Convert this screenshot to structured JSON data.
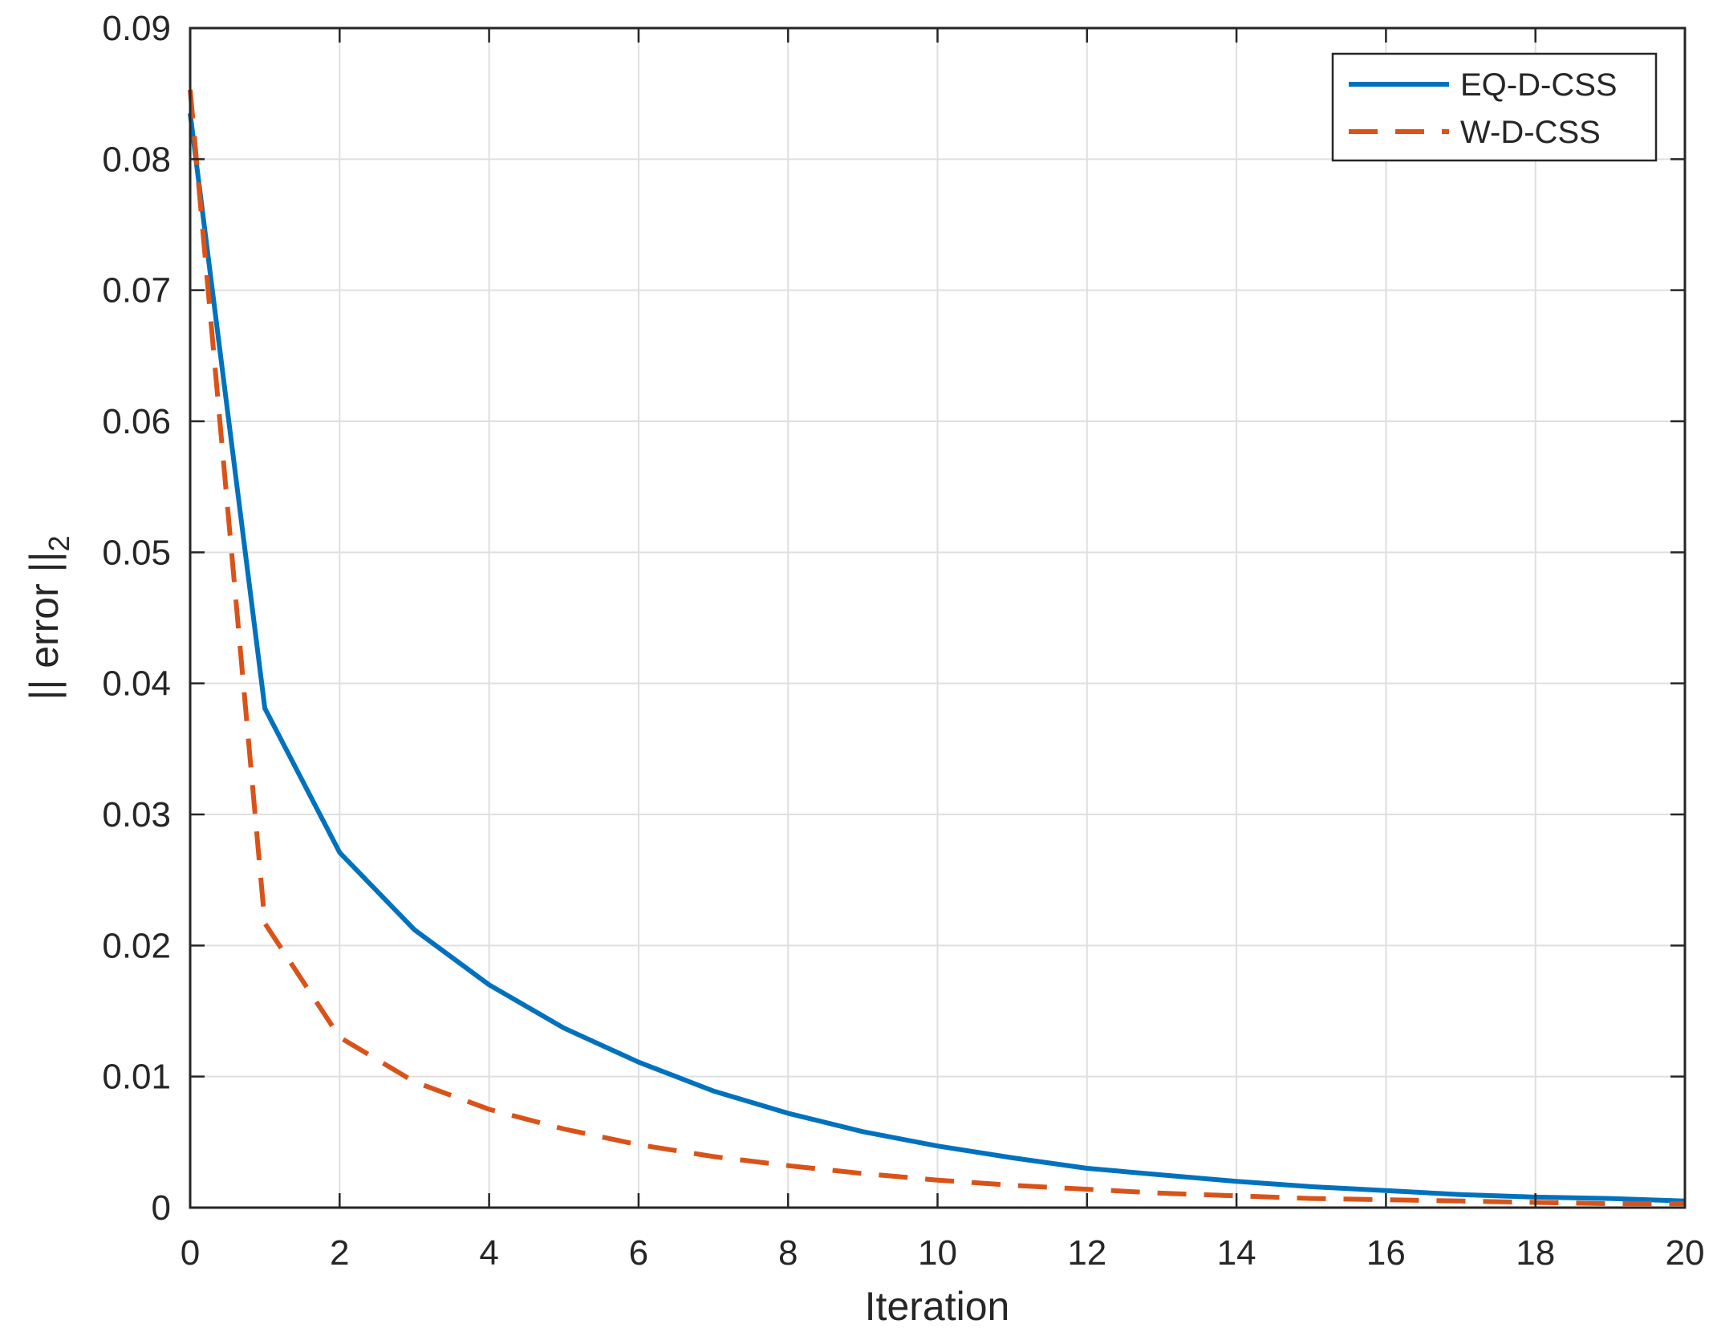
{
  "chart_data": {
    "type": "line",
    "title": "",
    "xlabel": "Iteration",
    "ylabel_main": "|| error ||",
    "ylabel_sub": "2",
    "xlim": [
      0,
      20
    ],
    "ylim": [
      0,
      0.09
    ],
    "xticks": [
      "0",
      "2",
      "4",
      "6",
      "8",
      "10",
      "12",
      "14",
      "16",
      "18",
      "20"
    ],
    "yticks": [
      "0",
      "0.01",
      "0.02",
      "0.03",
      "0.04",
      "0.05",
      "0.06",
      "0.07",
      "0.08",
      "0.09"
    ],
    "grid": true,
    "legend_position": "top-right",
    "x": [
      0,
      1,
      2,
      3,
      4,
      5,
      6,
      7,
      8,
      9,
      10,
      11,
      12,
      13,
      14,
      15,
      16,
      17,
      18,
      19,
      20
    ],
    "series": [
      {
        "name": "EQ-D-CSS",
        "color": "#0072BD",
        "style": "solid",
        "values": [
          0.0835,
          0.0381,
          0.0271,
          0.0212,
          0.017,
          0.0137,
          0.0111,
          0.0089,
          0.0072,
          0.0058,
          0.0047,
          0.0038,
          0.003,
          0.0025,
          0.002,
          0.0016,
          0.0013,
          0.001,
          0.0008,
          0.0007,
          0.0005
        ]
      },
      {
        "name": "W-D-CSS",
        "color": "#D95319",
        "style": "dashed",
        "values": [
          0.0853,
          0.0217,
          0.013,
          0.0096,
          0.0075,
          0.006,
          0.0048,
          0.0039,
          0.0032,
          0.0026,
          0.0021,
          0.0017,
          0.0014,
          0.0011,
          0.0009,
          0.0007,
          0.0006,
          0.0005,
          0.0004,
          0.0003,
          0.0003
        ]
      }
    ]
  }
}
